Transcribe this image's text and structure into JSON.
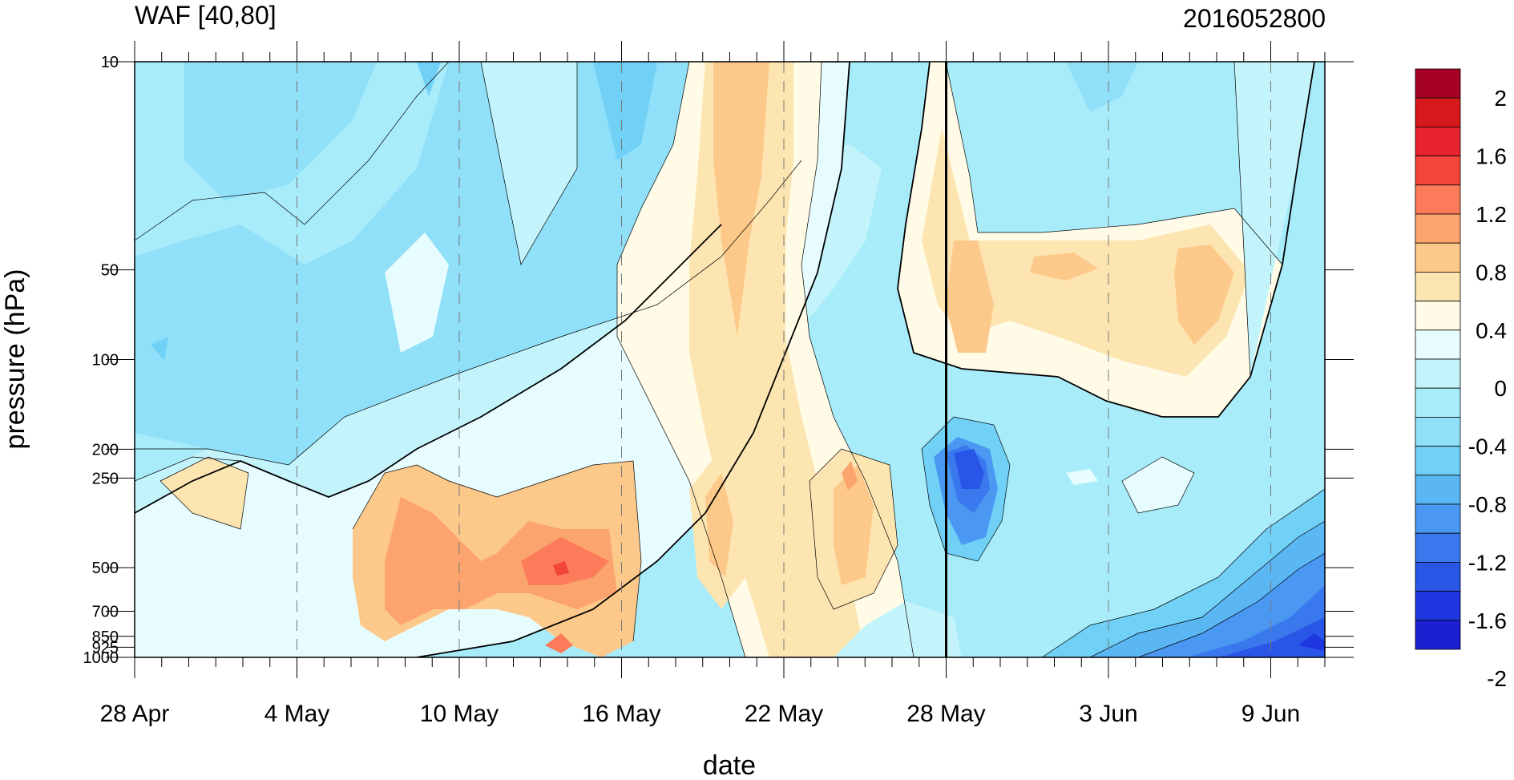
{
  "chart_data": {
    "type": "heatmap",
    "title": "WAF [40,80]",
    "subtitle": "2016052800",
    "xlabel": "date",
    "ylabel": "pressure (hPa)",
    "x_tick_labels": [
      "28 Apr",
      "4 May",
      "10 May",
      "16 May",
      "22 May",
      "28 May",
      "3 Jun",
      "9 Jun"
    ],
    "y_tick_labels": [
      "10",
      "50",
      "100",
      "200",
      "250",
      "500",
      "700",
      "850",
      "925",
      "1000"
    ],
    "y_scale": "log",
    "ylim": [
      1000,
      10
    ],
    "xlim": [
      "2016-04-28",
      "2016-06-11"
    ],
    "reference_line": "2016-05-28",
    "grid": "dashed vertical lines at labeled dates",
    "colorbar": {
      "labels": [
        "2",
        "1.6",
        "1.2",
        "0.8",
        "0.4",
        "0",
        "-0.4",
        "-0.8",
        "-1.2",
        "-1.6",
        "-2"
      ],
      "colors": [
        "#a50026",
        "#d7191c",
        "#e8232f",
        "#f4453b",
        "#fb7b5b",
        "#fca46e",
        "#fdc98a",
        "#fde5b2",
        "#fffbe6",
        "#e6fcff",
        "#c4f4fb",
        "#a8ecfa",
        "#8fe0f8",
        "#70d0f6",
        "#5bb6f4",
        "#4a98f2",
        "#3a78ee",
        "#2a56e8",
        "#1e36df",
        "#1a20d0"
      ]
    },
    "regions": [
      {
        "date": "2016-04-28",
        "level": 10,
        "value": -0.5
      },
      {
        "date": "2016-05-20",
        "level": 10,
        "value": 0.2
      },
      {
        "date": "2016-05-30",
        "level": 50,
        "value": 0.7
      },
      {
        "date": "2016-06-07",
        "level": 60,
        "value": 0.8
      },
      {
        "date": "2016-05-14",
        "level": 500,
        "value": 1.2
      },
      {
        "date": "2016-05-30",
        "level": 250,
        "value": -1.6
      },
      {
        "date": "2016-06-10",
        "level": 900,
        "value": -1.8
      },
      {
        "date": "2016-05-04",
        "level": 250,
        "value": 0.2
      },
      {
        "date": "2016-05-25",
        "level": 300,
        "value": 0.7
      },
      {
        "date": "2016-05-19",
        "level": 400,
        "value": 0.6
      }
    ]
  }
}
